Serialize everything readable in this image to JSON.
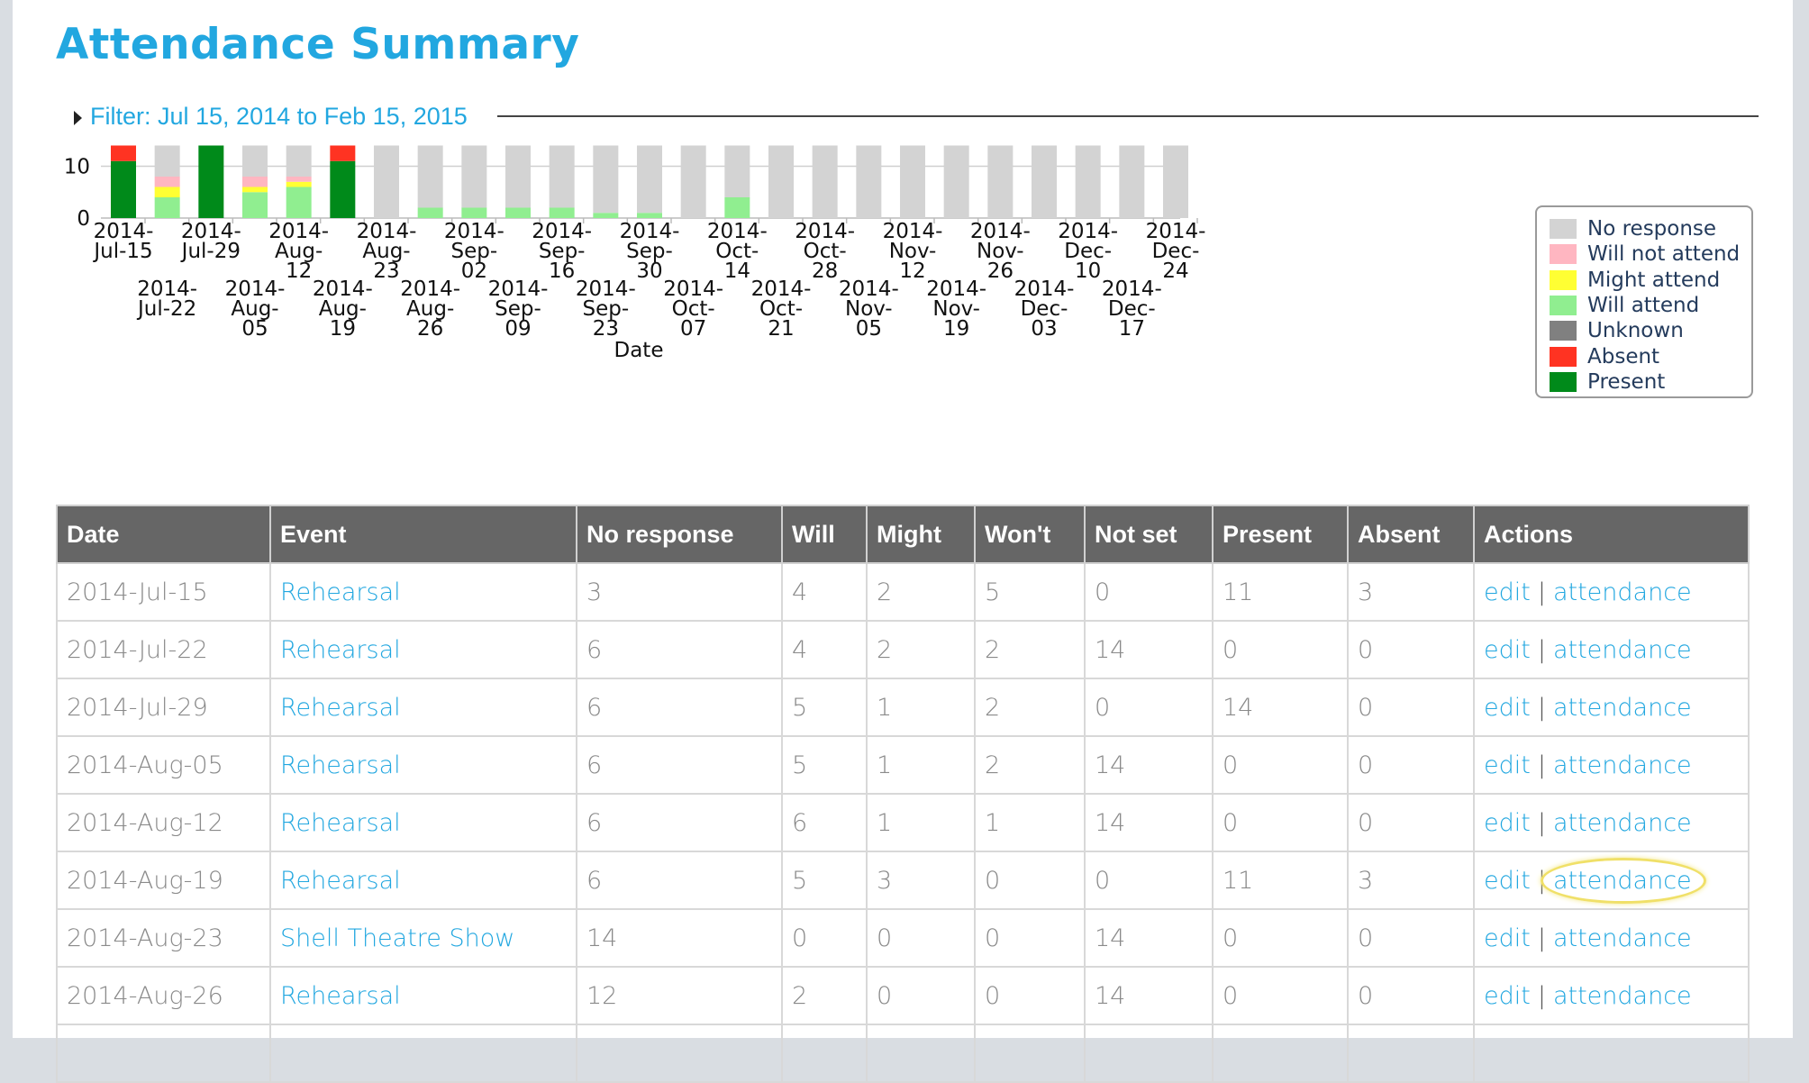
{
  "page": {
    "title": "Attendance Summary"
  },
  "filter": {
    "label": "Filter: Jul 15, 2014 to Feb 15, 2015"
  },
  "colors": {
    "no_response": "#d3d3d3",
    "will_not": "#ffb6c1",
    "might": "#ffff33",
    "will": "#90ee90",
    "unknown": "#808080",
    "absent": "#ff3322",
    "present": "#008a1a",
    "accent": "#22a7e0",
    "header_bg": "#666666"
  },
  "chart_data": {
    "type": "bar",
    "stacked": true,
    "xlabel": "Date",
    "ylabel": "",
    "ylim": [
      0,
      20
    ],
    "yticks": [
      0,
      10,
      20
    ],
    "grid": true,
    "legend_position": "right",
    "categories": [
      "2014-Jul-15",
      "2014-Jul-22",
      "2014-Jul-29",
      "2014-Aug-05",
      "2014-Aug-12",
      "2014-Aug-19",
      "2014-Aug-23",
      "2014-Aug-26",
      "2014-Sep-02",
      "2014-Sep-09",
      "2014-Sep-16",
      "2014-Sep-23",
      "2014-Sep-30",
      "2014-Oct-07",
      "2014-Oct-14",
      "2014-Oct-21",
      "2014-Oct-28",
      "2014-Nov-05",
      "2014-Nov-12",
      "2014-Nov-19",
      "2014-Nov-26",
      "2014-Dec-03",
      "2014-Dec-10",
      "2014-Dec-17",
      "2014-Dec-24"
    ],
    "tick_labels": [
      [
        "2014-",
        "Jul-15"
      ],
      [
        "2014-",
        "Jul-22"
      ],
      [
        "2014-",
        "Jul-29"
      ],
      [
        "2014-",
        "Aug-",
        "05"
      ],
      [
        "2014-",
        "Aug-",
        "12"
      ],
      [
        "2014-",
        "Aug-",
        "19"
      ],
      [
        "2014-",
        "Aug-",
        "23"
      ],
      [
        "2014-",
        "Aug-",
        "26"
      ],
      [
        "2014-",
        "Sep-",
        "02"
      ],
      [
        "2014-",
        "Sep-",
        "09"
      ],
      [
        "2014-",
        "Sep-",
        "16"
      ],
      [
        "2014-",
        "Sep-",
        "23"
      ],
      [
        "2014-",
        "Sep-",
        "30"
      ],
      [
        "2014-",
        "Oct-",
        "07"
      ],
      [
        "2014-",
        "Oct-",
        "14"
      ],
      [
        "2014-",
        "Oct-",
        "21"
      ],
      [
        "2014-",
        "Oct-",
        "28"
      ],
      [
        "2014-",
        "Nov-",
        "05"
      ],
      [
        "2014-",
        "Nov-",
        "12"
      ],
      [
        "2014-",
        "Nov-",
        "19"
      ],
      [
        "2014-",
        "Nov-",
        "26"
      ],
      [
        "2014-",
        "Dec-",
        "03"
      ],
      [
        "2014-",
        "Dec-",
        "10"
      ],
      [
        "2014-",
        "Dec-",
        "17"
      ],
      [
        "2014-",
        "Dec-",
        "24"
      ]
    ],
    "series": [
      {
        "name": "Present",
        "color_key": "present",
        "values": [
          11,
          0,
          14,
          0,
          0,
          11,
          0,
          0,
          0,
          0,
          0,
          0,
          0,
          0,
          0,
          0,
          0,
          0,
          0,
          0,
          0,
          0,
          0,
          0,
          0
        ]
      },
      {
        "name": "Absent",
        "color_key": "absent",
        "values": [
          3,
          0,
          0,
          0,
          0,
          3,
          0,
          0,
          0,
          0,
          0,
          0,
          0,
          0,
          0,
          0,
          0,
          0,
          0,
          0,
          0,
          0,
          0,
          0,
          0
        ]
      },
      {
        "name": "Unknown",
        "color_key": "unknown",
        "values": [
          0,
          0,
          0,
          0,
          0,
          0,
          0,
          0,
          0,
          0,
          0,
          0,
          0,
          0,
          0,
          0,
          0,
          0,
          0,
          0,
          0,
          0,
          0,
          0,
          0
        ]
      },
      {
        "name": "Will attend",
        "color_key": "will",
        "values": [
          0,
          4,
          0,
          5,
          6,
          0,
          0,
          2,
          2,
          2,
          2,
          1,
          1,
          0,
          4,
          0,
          0,
          0,
          0,
          0,
          0,
          0,
          0,
          0,
          0
        ]
      },
      {
        "name": "Might attend",
        "color_key": "might",
        "values": [
          0,
          2,
          0,
          1,
          1,
          0,
          0,
          0,
          0,
          0,
          0,
          0,
          0,
          0,
          0,
          0,
          0,
          0,
          0,
          0,
          0,
          0,
          0,
          0,
          0
        ]
      },
      {
        "name": "Will not attend",
        "color_key": "will_not",
        "values": [
          0,
          2,
          0,
          2,
          1,
          0,
          0,
          0,
          0,
          0,
          0,
          0,
          0,
          0,
          0,
          0,
          0,
          0,
          0,
          0,
          0,
          0,
          0,
          0,
          0
        ]
      },
      {
        "name": "No response",
        "color_key": "no_response",
        "values": [
          0,
          6,
          0,
          6,
          6,
          0,
          14,
          12,
          12,
          12,
          12,
          13,
          13,
          14,
          10,
          14,
          14,
          14,
          14,
          14,
          14,
          14,
          14,
          14,
          14
        ]
      }
    ],
    "legend": [
      {
        "label": "No response",
        "color_key": "no_response"
      },
      {
        "label": "Will not attend",
        "color_key": "will_not"
      },
      {
        "label": "Might attend",
        "color_key": "might"
      },
      {
        "label": "Will attend",
        "color_key": "will"
      },
      {
        "label": "Unknown",
        "color_key": "unknown"
      },
      {
        "label": "Absent",
        "color_key": "absent"
      },
      {
        "label": "Present",
        "color_key": "present"
      }
    ]
  },
  "table": {
    "headers": [
      "Date",
      "Event",
      "No response",
      "Will",
      "Might",
      "Won't",
      "Not set",
      "Present",
      "Absent",
      "Actions"
    ],
    "action_edit": "edit",
    "action_sep": "|",
    "action_attendance": "attendance",
    "rows": [
      {
        "date": "2014-Jul-15",
        "event": "Rehearsal",
        "no_response": "3",
        "will": "4",
        "might": "2",
        "wont": "5",
        "not_set": "0",
        "present": "11",
        "absent": "3"
      },
      {
        "date": "2014-Jul-22",
        "event": "Rehearsal",
        "no_response": "6",
        "will": "4",
        "might": "2",
        "wont": "2",
        "not_set": "14",
        "present": "0",
        "absent": "0"
      },
      {
        "date": "2014-Jul-29",
        "event": "Rehearsal",
        "no_response": "6",
        "will": "5",
        "might": "1",
        "wont": "2",
        "not_set": "0",
        "present": "14",
        "absent": "0"
      },
      {
        "date": "2014-Aug-05",
        "event": "Rehearsal",
        "no_response": "6",
        "will": "5",
        "might": "1",
        "wont": "2",
        "not_set": "14",
        "present": "0",
        "absent": "0"
      },
      {
        "date": "2014-Aug-12",
        "event": "Rehearsal",
        "no_response": "6",
        "will": "6",
        "might": "1",
        "wont": "1",
        "not_set": "14",
        "present": "0",
        "absent": "0"
      },
      {
        "date": "2014-Aug-19",
        "event": "Rehearsal",
        "no_response": "6",
        "will": "5",
        "might": "3",
        "wont": "0",
        "not_set": "0",
        "present": "11",
        "absent": "3",
        "highlight": true
      },
      {
        "date": "2014-Aug-23",
        "event": "Shell Theatre Show",
        "no_response": "14",
        "will": "0",
        "might": "0",
        "wont": "0",
        "not_set": "14",
        "present": "0",
        "absent": "0"
      },
      {
        "date": "2014-Aug-26",
        "event": "Rehearsal",
        "no_response": "12",
        "will": "2",
        "might": "0",
        "wont": "0",
        "not_set": "14",
        "present": "0",
        "absent": "0"
      },
      {
        "date": "",
        "event": "",
        "no_response": "",
        "will": "",
        "might": "",
        "wont": "",
        "not_set": "",
        "present": "",
        "absent": "",
        "blank": true
      }
    ]
  }
}
